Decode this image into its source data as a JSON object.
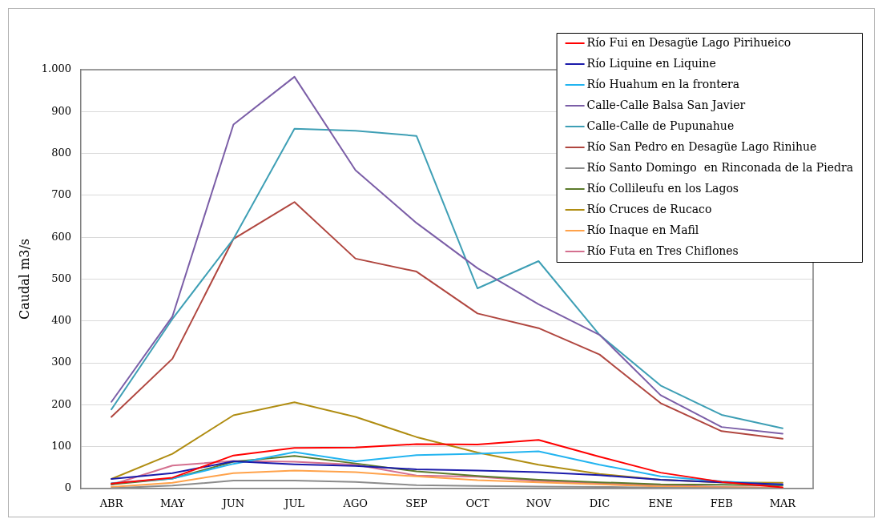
{
  "chart_data": {
    "type": "line",
    "ylabel": "Caudal m3/s",
    "categories": [
      "ABR",
      "MAY",
      "JUN",
      "JUL",
      "AGO",
      "SEP",
      "OCT",
      "NOV",
      "DIC",
      "ENE",
      "FEB",
      "MAR"
    ],
    "ylim": [
      0,
      1000
    ],
    "yticks": [
      0,
      100,
      200,
      300,
      400,
      500,
      600,
      700,
      800,
      900,
      {
        "value": 1000,
        "label": "1.000"
      }
    ],
    "grid": "y",
    "legend": "top right",
    "series": [
      {
        "name": "Río Fui en Desagüe Lago Pirihueico",
        "color": "#ff0000",
        "values": [
          12,
          26,
          79,
          97,
          98,
          106,
          105,
          116,
          76,
          38,
          16,
          3
        ]
      },
      {
        "name": "Río Liquine en Liquine",
        "color": "#1a1aaa",
        "values": [
          23,
          37,
          65,
          58,
          54,
          46,
          43,
          39,
          32,
          21,
          15,
          10
        ]
      },
      {
        "name": "Río Huahum en la frontera",
        "color": "#22b4f0",
        "values": [
          13,
          24,
          59,
          87,
          65,
          80,
          83,
          89,
          57,
          29,
          17,
          9
        ]
      },
      {
        "name": "Calle-Calle Balsa San Javier",
        "color": "#7b5ea7",
        "values": [
          207,
          411,
          869,
          983,
          760,
          634,
          526,
          440,
          367,
          223,
          147,
          131
        ]
      },
      {
        "name": "Calle-Calle de Pupunahue",
        "color": "#3e9fb5",
        "values": [
          189,
          405,
          596,
          859,
          854,
          842,
          478,
          543,
          367,
          246,
          176,
          144
        ]
      },
      {
        "name": "Río San Pedro en Desagüe Lago Rinihue",
        "color": "#b0463f",
        "values": [
          171,
          310,
          596,
          684,
          549,
          518,
          418,
          383,
          320,
          204,
          137,
          119
        ]
      },
      {
        "name": "Río Santo Domingo  en Rinconada de la Piedra",
        "color": "#8c8c8c",
        "values": [
          1,
          7,
          19,
          19,
          16,
          8,
          6,
          5,
          4,
          2,
          1,
          1
        ]
      },
      {
        "name": "Río Collileufu en los Lagos",
        "color": "#5b7a2b",
        "values": [
          10,
          24,
          64,
          78,
          60,
          41,
          30,
          21,
          15,
          10,
          9,
          7
        ]
      },
      {
        "name": "Río Cruces de Rucaco",
        "color": "#b08d12",
        "values": [
          23,
          83,
          175,
          206,
          171,
          123,
          86,
          57,
          35,
          21,
          15,
          14
        ]
      },
      {
        "name": "Río Inaque en Mafil",
        "color": "#ffa24a",
        "values": [
          4,
          14,
          37,
          43,
          39,
          29,
          20,
          15,
          10,
          5,
          3,
          2
        ]
      },
      {
        "name": "Río Futa en Tres Chiflones",
        "color": "#d4708f",
        "values": [
          9,
          55,
          66,
          64,
          57,
          31,
          28,
          18,
          12,
          8,
          4,
          2
        ]
      }
    ]
  }
}
